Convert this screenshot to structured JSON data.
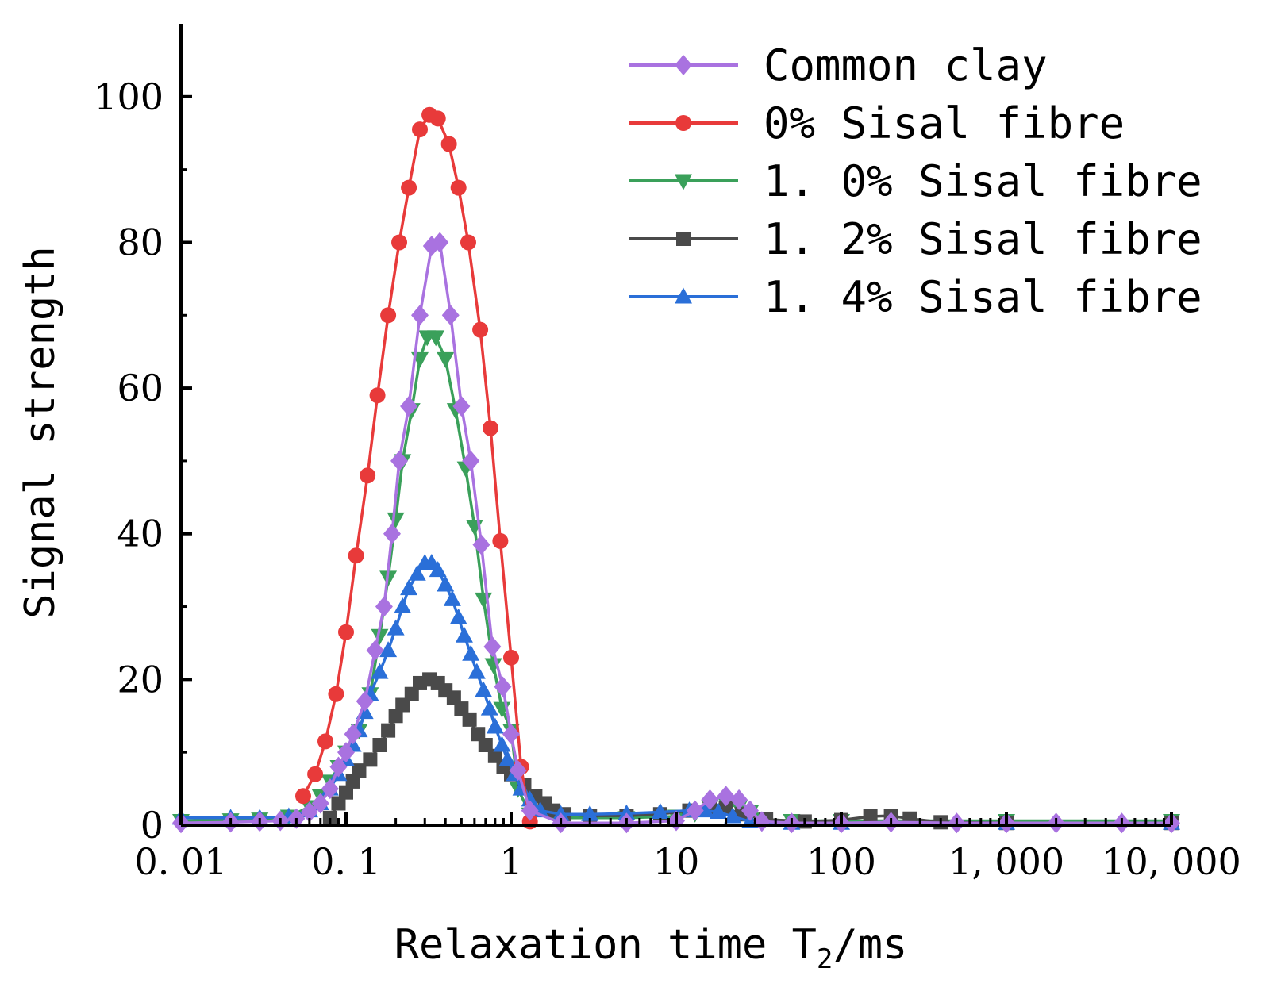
{
  "chart_data": {
    "type": "line",
    "xscale": "log",
    "xlim": [
      0.01,
      10000
    ],
    "ylim": [
      0,
      110
    ],
    "xlabel_main": "Relaxation time T",
    "xlabel_sub": "2",
    "xlabel_unit": "/ms",
    "ylabel": "Signal strength",
    "x_tick_values": [
      0.01,
      0.1,
      1,
      10,
      100,
      1000,
      10000
    ],
    "x_tick_labels": [
      "0. 01",
      "0. 1",
      "1",
      "10",
      "100",
      "1, 000",
      "10, 000"
    ],
    "y_ticks": [
      0,
      20,
      40,
      60,
      80,
      100
    ],
    "y_tick_labels": [
      "0",
      "20",
      "40",
      "60",
      "80",
      "100"
    ],
    "legend_position": "top-right",
    "series": [
      {
        "name": "Common clay",
        "legend_label": "Common clay",
        "color": "#a972e0",
        "marker": "diamond",
        "points": [
          [
            0.01,
            0.3
          ],
          [
            0.02,
            0.4
          ],
          [
            0.03,
            0.5
          ],
          [
            0.04,
            0.6
          ],
          [
            0.05,
            0.9
          ],
          [
            0.06,
            1.8
          ],
          [
            0.07,
            3
          ],
          [
            0.08,
            5
          ],
          [
            0.09,
            8
          ],
          [
            0.1,
            10
          ],
          [
            0.11,
            12.5
          ],
          [
            0.13,
            17
          ],
          [
            0.15,
            24
          ],
          [
            0.17,
            30
          ],
          [
            0.19,
            40
          ],
          [
            0.21,
            50
          ],
          [
            0.24,
            57.5
          ],
          [
            0.28,
            70
          ],
          [
            0.33,
            79.5
          ],
          [
            0.37,
            80
          ],
          [
            0.43,
            70
          ],
          [
            0.5,
            57.5
          ],
          [
            0.57,
            50
          ],
          [
            0.66,
            38.5
          ],
          [
            0.77,
            24.5
          ],
          [
            0.89,
            19
          ],
          [
            1.0,
            12.5
          ],
          [
            1.1,
            7.5
          ],
          [
            1.3,
            2
          ],
          [
            2,
            0.3
          ],
          [
            5,
            0.3
          ],
          [
            10,
            0.6
          ],
          [
            13,
            2
          ],
          [
            16,
            3.5
          ],
          [
            20,
            4
          ],
          [
            24,
            3.5
          ],
          [
            28,
            2
          ],
          [
            33,
            0.5
          ],
          [
            50,
            0.3
          ],
          [
            100,
            0.3
          ],
          [
            200,
            0.4
          ],
          [
            500,
            0.3
          ],
          [
            1000,
            0.3
          ],
          [
            2000,
            0.3
          ],
          [
            5000,
            0.3
          ],
          [
            10000,
            0.3
          ]
        ]
      },
      {
        "name": "0% Sisal fibre",
        "legend_label": "0%   Sisal fibre",
        "color": "#e83a3a",
        "marker": "circle",
        "points": [
          [
            0.055,
            4
          ],
          [
            0.065,
            7
          ],
          [
            0.075,
            11.5
          ],
          [
            0.087,
            18
          ],
          [
            0.1,
            26.5
          ],
          [
            0.115,
            37
          ],
          [
            0.135,
            48
          ],
          [
            0.155,
            59
          ],
          [
            0.18,
            70
          ],
          [
            0.21,
            80
          ],
          [
            0.24,
            87.5
          ],
          [
            0.28,
            95.5
          ],
          [
            0.32,
            97.5
          ],
          [
            0.36,
            97
          ],
          [
            0.42,
            93.5
          ],
          [
            0.48,
            87.5
          ],
          [
            0.55,
            80
          ],
          [
            0.65,
            68
          ],
          [
            0.75,
            54.5
          ],
          [
            0.86,
            39
          ],
          [
            1.0,
            23
          ],
          [
            1.15,
            8
          ],
          [
            1.3,
            0.5
          ]
        ]
      },
      {
        "name": "1.0% Sisal fibre",
        "legend_label": "1. 0% Sisal fibre",
        "color": "#3aa05a",
        "marker": "triangle-down",
        "points": [
          [
            0.01,
            0.6
          ],
          [
            0.02,
            0.7
          ],
          [
            0.03,
            0.8
          ],
          [
            0.045,
            1.2
          ],
          [
            0.06,
            2.5
          ],
          [
            0.07,
            4
          ],
          [
            0.08,
            6
          ],
          [
            0.09,
            8
          ],
          [
            0.1,
            10
          ],
          [
            0.12,
            13
          ],
          [
            0.14,
            18
          ],
          [
            0.16,
            26
          ],
          [
            0.18,
            34
          ],
          [
            0.2,
            42
          ],
          [
            0.22,
            50
          ],
          [
            0.25,
            57
          ],
          [
            0.28,
            64
          ],
          [
            0.31,
            67
          ],
          [
            0.35,
            67
          ],
          [
            0.4,
            64
          ],
          [
            0.46,
            57
          ],
          [
            0.53,
            49
          ],
          [
            0.6,
            41
          ],
          [
            0.68,
            31
          ],
          [
            0.78,
            22
          ],
          [
            0.88,
            16
          ],
          [
            1.0,
            13
          ],
          [
            1.1,
            5
          ],
          [
            1.3,
            1.5
          ],
          [
            2,
            1
          ],
          [
            5,
            1
          ],
          [
            10,
            1.2
          ],
          [
            13,
            1.6
          ],
          [
            16,
            2.5
          ],
          [
            20,
            3
          ],
          [
            24,
            2.5
          ],
          [
            28,
            1.8
          ],
          [
            33,
            0.8
          ],
          [
            50,
            0.6
          ],
          [
            100,
            0.6
          ],
          [
            1000,
            0.6
          ],
          [
            10000,
            0.6
          ]
        ]
      },
      {
        "name": "1.2% Sisal fibre",
        "legend_label": "1. 2% Sisal fibre",
        "color": "#4a4a4a",
        "marker": "square",
        "points": [
          [
            0.08,
            1
          ],
          [
            0.09,
            3
          ],
          [
            0.1,
            4.5
          ],
          [
            0.11,
            6
          ],
          [
            0.12,
            7.5
          ],
          [
            0.14,
            9
          ],
          [
            0.16,
            11
          ],
          [
            0.18,
            13
          ],
          [
            0.2,
            15
          ],
          [
            0.22,
            16.5
          ],
          [
            0.25,
            18
          ],
          [
            0.28,
            19.5
          ],
          [
            0.32,
            20
          ],
          [
            0.36,
            19.5
          ],
          [
            0.4,
            18.5
          ],
          [
            0.45,
            17.5
          ],
          [
            0.5,
            16
          ],
          [
            0.56,
            14.5
          ],
          [
            0.63,
            12.5
          ],
          [
            0.7,
            11
          ],
          [
            0.8,
            9.5
          ],
          [
            0.9,
            8
          ],
          [
            1.0,
            7
          ],
          [
            1.2,
            5.5
          ],
          [
            1.4,
            4
          ],
          [
            1.6,
            3
          ],
          [
            1.8,
            2
          ],
          [
            2.1,
            1.5
          ],
          [
            3,
            1.3
          ],
          [
            5,
            1.3
          ],
          [
            8,
            1.5
          ],
          [
            12,
            2
          ],
          [
            16,
            2.5
          ],
          [
            20,
            2.3
          ],
          [
            25,
            1.5
          ],
          [
            35,
            0.8
          ],
          [
            60,
            0.5
          ],
          [
            100,
            0.7
          ],
          [
            150,
            1.2
          ],
          [
            200,
            1.3
          ],
          [
            260,
            0.9
          ],
          [
            400,
            0.4
          ],
          [
            1000,
            0.3
          ],
          [
            10000,
            0.3
          ]
        ]
      },
      {
        "name": "1.4% Sisal fibre",
        "legend_label": "1. 4% Sisal fibre",
        "color": "#2a6fd8",
        "marker": "triangle-up",
        "points": [
          [
            0.01,
            1
          ],
          [
            0.02,
            1
          ],
          [
            0.03,
            1
          ],
          [
            0.045,
            1.2
          ],
          [
            0.06,
            2
          ],
          [
            0.07,
            3
          ],
          [
            0.08,
            5
          ],
          [
            0.09,
            7
          ],
          [
            0.1,
            9
          ],
          [
            0.11,
            11
          ],
          [
            0.12,
            13
          ],
          [
            0.13,
            15.5
          ],
          [
            0.14,
            18
          ],
          [
            0.16,
            21
          ],
          [
            0.18,
            24
          ],
          [
            0.2,
            27
          ],
          [
            0.22,
            30
          ],
          [
            0.24,
            32.5
          ],
          [
            0.27,
            34.5
          ],
          [
            0.3,
            36
          ],
          [
            0.33,
            36
          ],
          [
            0.36,
            35
          ],
          [
            0.4,
            33
          ],
          [
            0.44,
            31
          ],
          [
            0.48,
            28.5
          ],
          [
            0.52,
            26
          ],
          [
            0.57,
            23.5
          ],
          [
            0.62,
            21
          ],
          [
            0.68,
            18.5
          ],
          [
            0.74,
            16
          ],
          [
            0.8,
            13.5
          ],
          [
            0.88,
            11
          ],
          [
            0.95,
            9
          ],
          [
            1.05,
            7
          ],
          [
            1.15,
            5
          ],
          [
            1.3,
            3.5
          ],
          [
            1.5,
            2
          ],
          [
            2,
            1.5
          ],
          [
            3,
            1.5
          ],
          [
            5,
            1.6
          ],
          [
            8,
            1.8
          ],
          [
            12,
            2
          ],
          [
            15,
            2
          ],
          [
            18,
            1.8
          ],
          [
            22,
            1.2
          ],
          [
            28,
            0.5
          ],
          [
            50,
            0.3
          ],
          [
            100,
            0.3
          ],
          [
            1000,
            0.3
          ],
          [
            10000,
            0.3
          ]
        ]
      }
    ]
  }
}
